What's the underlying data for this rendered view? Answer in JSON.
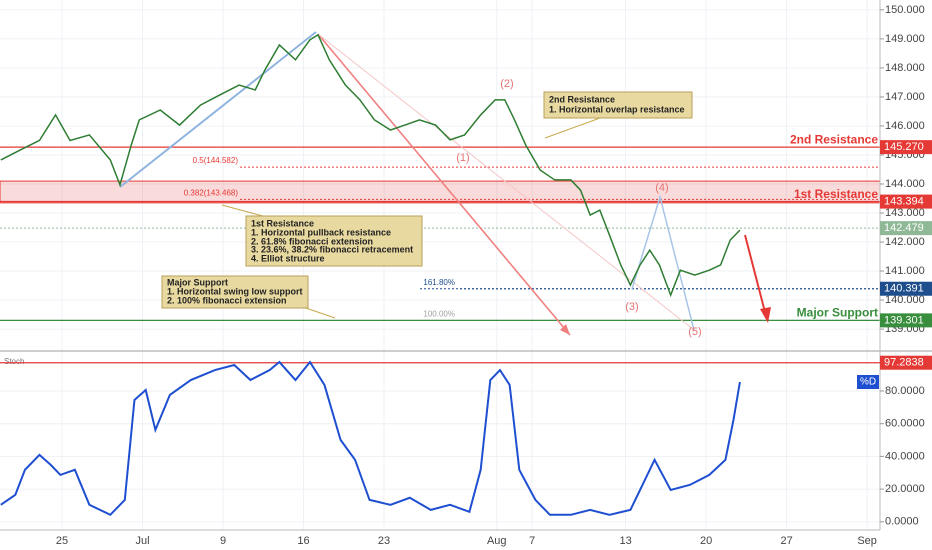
{
  "chart_data": {
    "type": "line",
    "x": [
      -3.8,
      -2.6,
      -1.4,
      -0.4,
      0.5,
      1.7,
      3.0,
      3.6,
      4.3,
      4.8,
      6.1,
      7.3,
      8.6,
      9.8,
      11.0,
      12.0,
      12.6,
      13.5,
      14.5,
      15.4,
      15.9,
      16.6,
      17.6,
      18.5,
      19.4,
      20.4,
      21.3,
      22.2,
      23.2,
      24.1,
      25.0,
      26.0,
      26.9,
      27.5,
      28.1,
      28.8,
      29.7,
      30.6,
      31.6,
      32.2,
      32.8,
      33.4,
      34.0,
      34.7,
      35.3,
      35.9,
      36.5,
      37.1,
      37.8,
      38.4,
      39.3,
      40.2,
      40.9,
      41.5,
      42.1
    ],
    "series": [
      {
        "color": "#2e7d32",
        "values": [
          144.83,
          145.17,
          145.5,
          146.38,
          145.5,
          145.69,
          144.83,
          143.97,
          145.34,
          146.21,
          146.55,
          146.03,
          146.72,
          147.07,
          147.41,
          147.24,
          147.93,
          148.79,
          148.28,
          148.97,
          149.14,
          148.28,
          147.41,
          146.9,
          146.21,
          145.86,
          146.03,
          146.21,
          146.03,
          145.52,
          145.69,
          146.38,
          146.9,
          146.9,
          146.21,
          145.34,
          144.48,
          144.14,
          144.14,
          143.79,
          142.93,
          143.1,
          142.24,
          141.21,
          140.52,
          141.21,
          141.72,
          141.21,
          140.17,
          141.03,
          140.86,
          141.03,
          141.21,
          142.07,
          142.41
        ]
      }
    ],
    "xlim": [
      -3.85,
      50.8
    ],
    "xticks": [
      {
        "value": 0,
        "label": "25"
      },
      {
        "value": 5,
        "label": "Jul"
      },
      {
        "value": 10,
        "label": "9"
      },
      {
        "value": 15,
        "label": "16"
      },
      {
        "value": 20,
        "label": "23"
      },
      {
        "value": 27,
        "label": "Aug"
      },
      {
        "value": 29.2,
        "label": "7"
      },
      {
        "value": 35,
        "label": "13"
      },
      {
        "value": 40,
        "label": "20"
      },
      {
        "value": 45,
        "label": "27"
      },
      {
        "value": 50,
        "label": "Sep"
      }
    ],
    "ylim": [
      138.28,
      150.34
    ],
    "yticks": [
      {
        "value": 150,
        "label": "150.000"
      },
      {
        "value": 149,
        "label": "149.000"
      },
      {
        "value": 148,
        "label": "148.000"
      },
      {
        "value": 147,
        "label": "147.000"
      },
      {
        "value": 146,
        "label": "146.000"
      },
      {
        "value": 145,
        "label": "145.000"
      },
      {
        "value": 144,
        "label": "144.000"
      },
      {
        "value": 143,
        "label": "143.000"
      },
      {
        "value": 142,
        "label": "142.000"
      },
      {
        "value": 141,
        "label": "141.000"
      },
      {
        "value": 140,
        "label": "140.000"
      },
      {
        "value": 139,
        "label": "139.000"
      }
    ],
    "levels": [
      {
        "name": "2nd Resistance",
        "value": 145.27,
        "value_label": "145.270",
        "color": "#e53935"
      },
      {
        "name": "1st Resistance",
        "value": 143.394,
        "value_label": "143.394",
        "color": "#e53935"
      },
      {
        "name": "Major Support",
        "value": 139.301,
        "value_label": "139.301",
        "color": "#388e3c"
      }
    ],
    "last_price": {
      "value": 142.479,
      "label": "142.479",
      "color": "#8fb996"
    },
    "blue_level": {
      "value": 140.391,
      "label": "140.391",
      "color": "#1e4f8c"
    },
    "zone": [
      143.35,
      144.1
    ],
    "fib_levels": [
      {
        "label": "0.5(144.582)",
        "value": 144.582,
        "color": "#e53935"
      },
      {
        "label": "0.382(143.468)",
        "value": 143.468,
        "color": "#e53935"
      },
      {
        "label": "161.80%",
        "value": 140.391,
        "color": "#1e4f8c"
      },
      {
        "label": "100.00%",
        "value": 139.301,
        "color": "#9e9e9e"
      }
    ],
    "waves": [
      "(1)",
      "(2)",
      "(3)",
      "(4)",
      "(5)"
    ],
    "annotations": [
      [
        "2nd Resistance",
        "1. Horizontal overlap resistance"
      ],
      [
        "1st Resistance",
        "1. Horizontal pullback resistance",
        "2. 61.8% fibonacci extension",
        "3. 23.6%, 38.2% fibonacci retracement",
        "4. Elliot structure"
      ],
      [
        "Major Support",
        "1. Horizontal swing low support",
        "2. 100% fibonacci extension"
      ]
    ],
    "stoch": {
      "label": "Stoch",
      "legend": "%D",
      "color": "#1f4fd1",
      "x": [
        -3.8,
        -2.9,
        -2.3,
        -1.4,
        -0.7,
        -0.1,
        0.8,
        1.7,
        3.0,
        3.9,
        4.5,
        5.2,
        5.8,
        6.7,
        8.0,
        9.5,
        10.7,
        11.7,
        12.9,
        13.5,
        14.5,
        15.4,
        16.3,
        17.3,
        18.2,
        19.1,
        20.4,
        21.6,
        22.9,
        24.1,
        25.3,
        26.0,
        26.6,
        27.2,
        27.8,
        28.4,
        29.4,
        30.3,
        31.6,
        32.8,
        34.0,
        35.3,
        35.9,
        36.8,
        37.8,
        39.0,
        40.2,
        41.2,
        41.7,
        42.1
      ],
      "values": [
        10.4,
        16.5,
        31.8,
        40.9,
        34.8,
        28.7,
        31.8,
        10.4,
        4.3,
        13.4,
        74.5,
        80.6,
        56.2,
        77.6,
        86.7,
        92.8,
        95.9,
        86.7,
        92.8,
        97.7,
        86.7,
        97.7,
        83.7,
        50.1,
        37.9,
        13.4,
        10.4,
        14.7,
        7.3,
        10.4,
        6.1,
        31.8,
        86.7,
        92.8,
        83.7,
        31.8,
        13.4,
        4.3,
        4.3,
        7.3,
        4.3,
        7.3,
        19.5,
        37.9,
        19.5,
        22.6,
        28.7,
        37.9,
        62.3,
        85.5
      ],
      "ylim": [
        -5,
        102
      ],
      "yticks": [
        {
          "value": 80,
          "label": "80.0000"
        },
        {
          "value": 60,
          "label": "60.0000"
        },
        {
          "value": 40,
          "label": "40.0000"
        },
        {
          "value": 20,
          "label": "20.0000"
        },
        {
          "value": 0,
          "label": "0.0000"
        }
      ],
      "level": {
        "value": 97.2838,
        "label": "97.2838",
        "color": "#e53935"
      }
    }
  }
}
